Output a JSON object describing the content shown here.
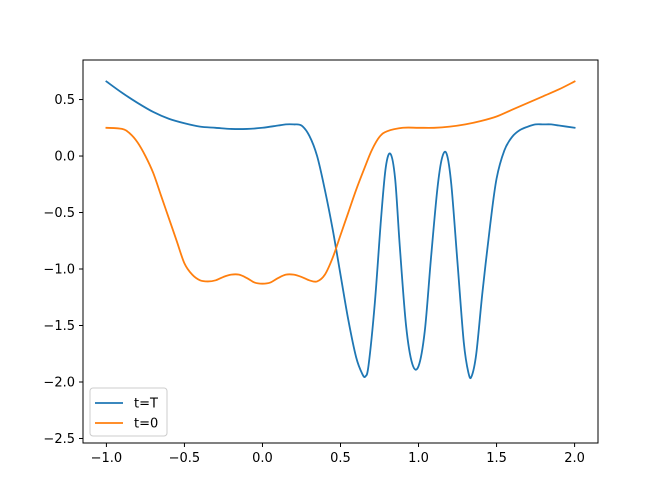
{
  "chart_data": {
    "type": "line",
    "title": "",
    "xlabel": "",
    "ylabel": "",
    "xlim": [
      -1.15,
      2.15
    ],
    "ylim": [
      -2.54,
      0.85
    ],
    "grid": false,
    "legend_position": "lower-left",
    "x_ticks": [
      {
        "value": -1.0,
        "label": "−1.0"
      },
      {
        "value": -0.5,
        "label": "−0.5"
      },
      {
        "value": 0.0,
        "label": "0.0"
      },
      {
        "value": 0.5,
        "label": "0.5"
      },
      {
        "value": 1.0,
        "label": "1.0"
      },
      {
        "value": 1.5,
        "label": "1.5"
      },
      {
        "value": 2.0,
        "label": "2.0"
      }
    ],
    "y_ticks": [
      {
        "value": 0.5,
        "label": "0.5"
      },
      {
        "value": 0.0,
        "label": "0.0"
      },
      {
        "value": -0.5,
        "label": "−0.5"
      },
      {
        "value": -1.0,
        "label": "−1.0"
      },
      {
        "value": -1.5,
        "label": "−1.5"
      },
      {
        "value": -2.0,
        "label": "−2.0"
      },
      {
        "value": -2.5,
        "label": "−2.5"
      }
    ],
    "series": [
      {
        "name": "t=T",
        "color": "#1f77b4",
        "points": [
          [
            -1.0,
            0.66
          ],
          [
            -0.9,
            0.56
          ],
          [
            -0.8,
            0.47
          ],
          [
            -0.7,
            0.39
          ],
          [
            -0.6,
            0.33
          ],
          [
            -0.5,
            0.29
          ],
          [
            -0.4,
            0.26
          ],
          [
            -0.3,
            0.25
          ],
          [
            -0.2,
            0.24
          ],
          [
            -0.1,
            0.24
          ],
          [
            0.0,
            0.25
          ],
          [
            0.1,
            0.27
          ],
          [
            0.15,
            0.28
          ],
          [
            0.2,
            0.28
          ],
          [
            0.25,
            0.27
          ],
          [
            0.3,
            0.18
          ],
          [
            0.35,
            0.0
          ],
          [
            0.4,
            -0.3
          ],
          [
            0.45,
            -0.65
          ],
          [
            0.5,
            -1.05
          ],
          [
            0.55,
            -1.45
          ],
          [
            0.6,
            -1.78
          ],
          [
            0.64,
            -1.93
          ],
          [
            0.66,
            -1.95
          ],
          [
            0.68,
            -1.85
          ],
          [
            0.72,
            -1.3
          ],
          [
            0.76,
            -0.55
          ],
          [
            0.79,
            -0.1
          ],
          [
            0.82,
            0.02
          ],
          [
            0.85,
            -0.2
          ],
          [
            0.88,
            -0.8
          ],
          [
            0.92,
            -1.5
          ],
          [
            0.96,
            -1.84
          ],
          [
            1.0,
            -1.86
          ],
          [
            1.04,
            -1.55
          ],
          [
            1.08,
            -0.9
          ],
          [
            1.12,
            -0.3
          ],
          [
            1.15,
            -0.02
          ],
          [
            1.18,
            0.02
          ],
          [
            1.21,
            -0.25
          ],
          [
            1.25,
            -0.95
          ],
          [
            1.29,
            -1.65
          ],
          [
            1.32,
            -1.92
          ],
          [
            1.34,
            -1.95
          ],
          [
            1.37,
            -1.75
          ],
          [
            1.41,
            -1.2
          ],
          [
            1.46,
            -0.6
          ],
          [
            1.5,
            -0.2
          ],
          [
            1.55,
            0.05
          ],
          [
            1.6,
            0.17
          ],
          [
            1.65,
            0.23
          ],
          [
            1.7,
            0.26
          ],
          [
            1.75,
            0.28
          ],
          [
            1.8,
            0.28
          ],
          [
            1.85,
            0.28
          ],
          [
            1.9,
            0.27
          ],
          [
            2.0,
            0.25
          ]
        ]
      },
      {
        "name": "t=0",
        "color": "#ff7f0e",
        "points": [
          [
            -1.0,
            0.25
          ],
          [
            -0.9,
            0.24
          ],
          [
            -0.85,
            0.2
          ],
          [
            -0.8,
            0.12
          ],
          [
            -0.75,
            0.0
          ],
          [
            -0.7,
            -0.15
          ],
          [
            -0.65,
            -0.35
          ],
          [
            -0.6,
            -0.55
          ],
          [
            -0.55,
            -0.75
          ],
          [
            -0.5,
            -0.95
          ],
          [
            -0.45,
            -1.05
          ],
          [
            -0.4,
            -1.1
          ],
          [
            -0.35,
            -1.11
          ],
          [
            -0.3,
            -1.1
          ],
          [
            -0.25,
            -1.07
          ],
          [
            -0.2,
            -1.05
          ],
          [
            -0.15,
            -1.05
          ],
          [
            -0.1,
            -1.08
          ],
          [
            -0.05,
            -1.12
          ],
          [
            0.0,
            -1.13
          ],
          [
            0.05,
            -1.12
          ],
          [
            0.1,
            -1.08
          ],
          [
            0.15,
            -1.05
          ],
          [
            0.2,
            -1.05
          ],
          [
            0.25,
            -1.07
          ],
          [
            0.3,
            -1.1
          ],
          [
            0.35,
            -1.11
          ],
          [
            0.4,
            -1.05
          ],
          [
            0.45,
            -0.9
          ],
          [
            0.5,
            -0.7
          ],
          [
            0.55,
            -0.5
          ],
          [
            0.6,
            -0.3
          ],
          [
            0.65,
            -0.12
          ],
          [
            0.7,
            0.05
          ],
          [
            0.75,
            0.17
          ],
          [
            0.8,
            0.22
          ],
          [
            0.9,
            0.25
          ],
          [
            1.0,
            0.25
          ],
          [
            1.1,
            0.25
          ],
          [
            1.2,
            0.26
          ],
          [
            1.3,
            0.28
          ],
          [
            1.4,
            0.31
          ],
          [
            1.5,
            0.35
          ],
          [
            1.6,
            0.41
          ],
          [
            1.7,
            0.47
          ],
          [
            1.8,
            0.53
          ],
          [
            1.9,
            0.59
          ],
          [
            2.0,
            0.66
          ]
        ]
      }
    ]
  }
}
